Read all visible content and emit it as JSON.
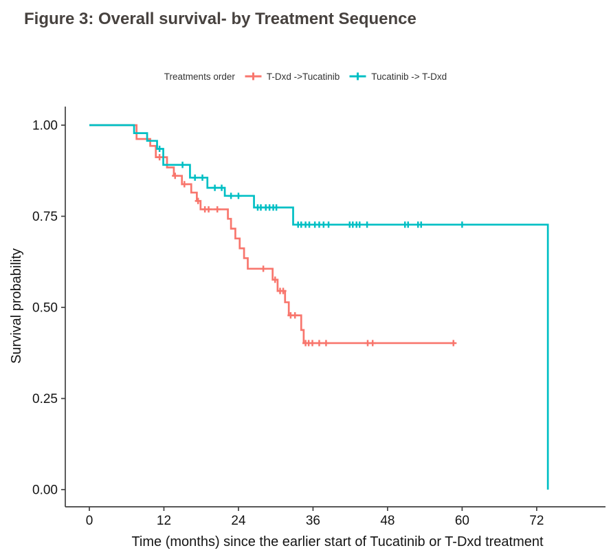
{
  "figure": {
    "title": "Figure 3: Overall survival- by Treatment Sequence"
  },
  "legend": {
    "title": "Treatments order",
    "items": [
      {
        "label": "T-Dxd ->Tucatinib",
        "color": "#F8766D"
      },
      {
        "label": "Tucatinib -> T-Dxd",
        "color": "#00BFC4"
      }
    ]
  },
  "axes": {
    "x": {
      "label": "Time (months) since the earlier start of Tucatinib or T-Dxd treatment",
      "ticks": [
        0,
        12,
        24,
        36,
        48,
        60,
        72
      ]
    },
    "y": {
      "label": "Survival probability",
      "ticks": [
        {
          "value": 1.0,
          "label": "1.00"
        },
        {
          "value": 0.75,
          "label": "0.75"
        },
        {
          "value": 0.5,
          "label": "0.50"
        },
        {
          "value": 0.25,
          "label": "0.25"
        },
        {
          "value": 0.0,
          "label": "0.00"
        }
      ]
    }
  },
  "chart_data": {
    "type": "line",
    "subtype": "kaplan-meier-step-curves",
    "title": "Figure 3: Overall survival- by Treatment Sequence",
    "xlabel": "Time (months) since the earlier start of Tucatinib or T-Dxd treatment",
    "ylabel": "Survival probability",
    "xlim": [
      0,
      82
    ],
    "ylim": [
      0.0,
      1.0
    ],
    "grid": false,
    "legend_position": "top",
    "legend_title": "Treatments order",
    "series": [
      {
        "name": "T-Dxd ->Tucatinib",
        "color": "#F8766D",
        "steps": [
          [
            0,
            1.0
          ],
          [
            7.6,
            0.962
          ],
          [
            9.8,
            0.943
          ],
          [
            10.7,
            0.912
          ],
          [
            12.5,
            0.884
          ],
          [
            13.6,
            0.861
          ],
          [
            14.9,
            0.838
          ],
          [
            16.4,
            0.815
          ],
          [
            17.3,
            0.792
          ],
          [
            17.9,
            0.769
          ],
          [
            22.3,
            0.743
          ],
          [
            22.8,
            0.716
          ],
          [
            23.5,
            0.689
          ],
          [
            24.2,
            0.662
          ],
          [
            24.9,
            0.635
          ],
          [
            25.5,
            0.606
          ],
          [
            29.5,
            0.576
          ],
          [
            30.3,
            0.545
          ],
          [
            31.5,
            0.514
          ],
          [
            32.1,
            0.478
          ],
          [
            34.1,
            0.438
          ],
          [
            34.5,
            0.402
          ]
        ],
        "end_time": 58.9,
        "censor_marks": [
          [
            11.3,
            0.912
          ],
          [
            13.8,
            0.861
          ],
          [
            15.3,
            0.838
          ],
          [
            17.5,
            0.792
          ],
          [
            18.6,
            0.769
          ],
          [
            19.2,
            0.769
          ],
          [
            20.6,
            0.769
          ],
          [
            28.0,
            0.606
          ],
          [
            29.9,
            0.576
          ],
          [
            30.7,
            0.545
          ],
          [
            31.2,
            0.545
          ],
          [
            32.4,
            0.478
          ],
          [
            33.1,
            0.478
          ],
          [
            34.8,
            0.402
          ],
          [
            35.3,
            0.402
          ],
          [
            35.9,
            0.402
          ],
          [
            37.0,
            0.402
          ],
          [
            38.1,
            0.402
          ],
          [
            44.8,
            0.402
          ],
          [
            45.6,
            0.402
          ],
          [
            58.6,
            0.402
          ]
        ]
      },
      {
        "name": "Tucatinib -> T-Dxd",
        "color": "#00BFC4",
        "steps": [
          [
            0,
            1.0
          ],
          [
            7.2,
            0.978
          ],
          [
            9.3,
            0.957
          ],
          [
            10.9,
            0.935
          ],
          [
            11.9,
            0.891
          ],
          [
            16.2,
            0.856
          ],
          [
            19.0,
            0.828
          ],
          [
            21.8,
            0.806
          ],
          [
            26.5,
            0.774
          ],
          [
            32.8,
            0.727
          ],
          [
            73.8,
            0.0
          ]
        ],
        "end_time": 73.8,
        "censor_marks": [
          [
            11.3,
            0.935
          ],
          [
            15.0,
            0.891
          ],
          [
            17.0,
            0.856
          ],
          [
            18.2,
            0.856
          ],
          [
            20.2,
            0.828
          ],
          [
            21.3,
            0.828
          ],
          [
            22.8,
            0.806
          ],
          [
            24.0,
            0.806
          ],
          [
            27.1,
            0.774
          ],
          [
            27.6,
            0.774
          ],
          [
            28.4,
            0.774
          ],
          [
            29.0,
            0.774
          ],
          [
            29.6,
            0.774
          ],
          [
            30.1,
            0.774
          ],
          [
            33.6,
            0.727
          ],
          [
            34.1,
            0.727
          ],
          [
            34.8,
            0.727
          ],
          [
            35.4,
            0.727
          ],
          [
            36.3,
            0.727
          ],
          [
            37.0,
            0.727
          ],
          [
            37.7,
            0.727
          ],
          [
            38.5,
            0.727
          ],
          [
            41.9,
            0.727
          ],
          [
            42.4,
            0.727
          ],
          [
            43.0,
            0.727
          ],
          [
            43.5,
            0.727
          ],
          [
            44.7,
            0.727
          ],
          [
            50.8,
            0.727
          ],
          [
            51.3,
            0.727
          ],
          [
            52.9,
            0.727
          ],
          [
            53.4,
            0.727
          ],
          [
            60.0,
            0.727
          ]
        ]
      }
    ]
  }
}
